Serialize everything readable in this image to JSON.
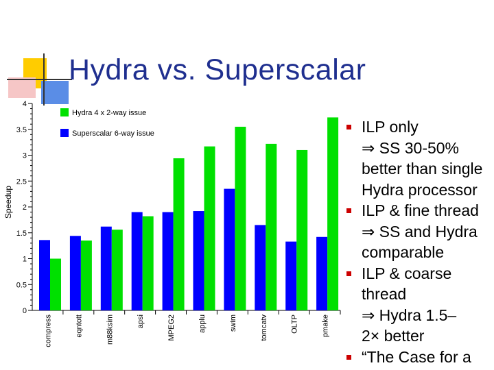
{
  "slide": {
    "title": "Hydra vs. Superscalar",
    "colors": {
      "title": "#1f2f8f",
      "hydra": "#00e000",
      "superscalar": "#0000ff",
      "bullet": "#cc0000"
    }
  },
  "chart_data": {
    "type": "bar",
    "ylabel": "Speedup",
    "xlabel": "",
    "ylim": [
      0,
      4
    ],
    "yticks": [
      0,
      0.5,
      1,
      1.5,
      2,
      2.5,
      3,
      3.5,
      4
    ],
    "categories": [
      "compress",
      "eqntott",
      "m88ksim",
      "apsi",
      "MPEG2",
      "applu",
      "swim",
      "tomcatv",
      "OLTP",
      "pmake"
    ],
    "series": [
      {
        "name": "Hydra 4 x 2-way issue",
        "color": "#00e000",
        "values": [
          1.0,
          1.35,
          1.56,
          1.82,
          2.94,
          3.17,
          3.55,
          3.22,
          3.1,
          3.73
        ]
      },
      {
        "name": "Superscalar 6-way issue",
        "color": "#0000ff",
        "values": [
          1.36,
          1.44,
          1.62,
          1.9,
          1.9,
          1.92,
          2.35,
          1.65,
          1.33,
          1.42
        ]
      }
    ],
    "grid": false,
    "legend": "top-left"
  },
  "bullets": [
    {
      "lines": [
        "ILP only",
        "⇒ SS 30-50%",
        "better than single",
        "Hydra processor"
      ]
    },
    {
      "lines": [
        "ILP & fine thread",
        "⇒ SS and Hydra",
        "comparable"
      ]
    },
    {
      "lines": [
        "ILP & coarse",
        "thread",
        "⇒ Hydra 1.5–",
        "2× better"
      ]
    },
    {
      "lines": [
        "“The Case for a"
      ]
    }
  ]
}
